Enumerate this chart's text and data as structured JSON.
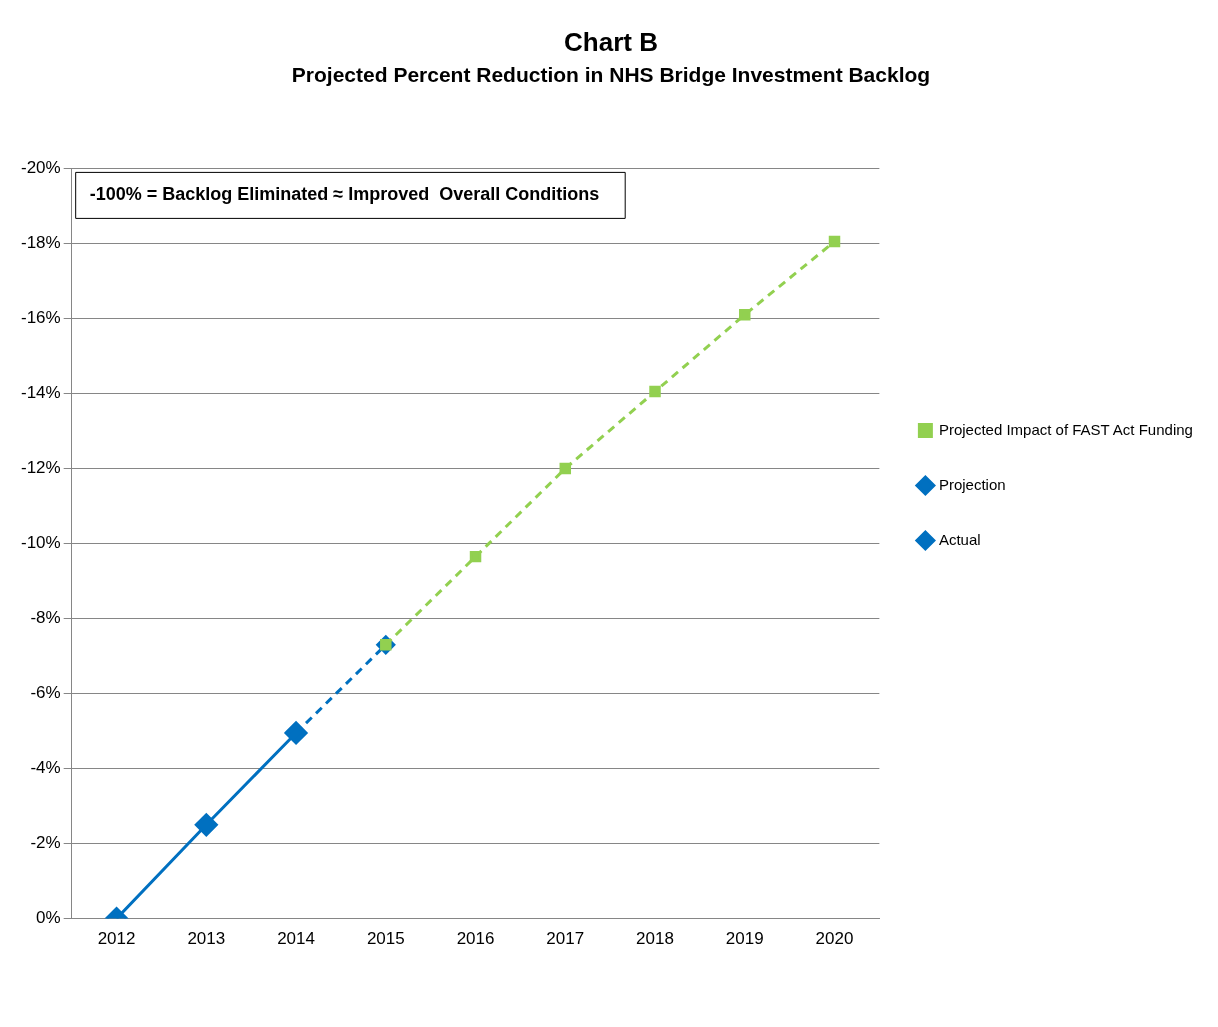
{
  "chart_data": {
    "type": "line",
    "title": "Chart B",
    "subtitle": "Projected Percent Reduction in NHS Bridge Investment Backlog",
    "categories": [
      "2012",
      "2013",
      "2014",
      "2015",
      "2016",
      "2017",
      "2018",
      "2019",
      "2020"
    ],
    "series": [
      {
        "name": "Projected Impact of FAST Act Funding",
        "color": "#92d050",
        "marker": "square",
        "line_style": "dashed",
        "values": [
          null,
          null,
          null,
          -7.3,
          -9.65,
          -12.0,
          -14.05,
          -16.1,
          -18.05
        ]
      },
      {
        "name": "Projection",
        "color": "#0070c0",
        "marker": "diamond",
        "line_style": "dashed",
        "values": [
          null,
          null,
          -4.95,
          -7.3,
          null,
          null,
          null,
          null,
          null
        ]
      },
      {
        "name": "Actual",
        "color": "#0070c0",
        "marker": "diamond",
        "line_style": "solid",
        "values": [
          0,
          -2.5,
          -4.95,
          null,
          null,
          null,
          null,
          null,
          null
        ]
      }
    ],
    "ylim": [
      0,
      -20
    ],
    "yticks": [
      {
        "value": 0,
        "label": "0%"
      },
      {
        "value": -2,
        "label": "-2%"
      },
      {
        "value": -4,
        "label": "-4%"
      },
      {
        "value": -6,
        "label": "-6%"
      },
      {
        "value": -8,
        "label": "-8%"
      },
      {
        "value": -10,
        "label": "-10%"
      },
      {
        "value": -12,
        "label": "-12%"
      },
      {
        "value": -14,
        "label": "-14%"
      },
      {
        "value": -16,
        "label": "-16%"
      },
      {
        "value": -18,
        "label": "-18%"
      },
      {
        "value": -20,
        "label": "-20%"
      }
    ],
    "grid": "y",
    "legend": "right",
    "annotations": [
      "-100% = Backlog Eliminated ≈ Improved  Overall Conditions"
    ]
  }
}
